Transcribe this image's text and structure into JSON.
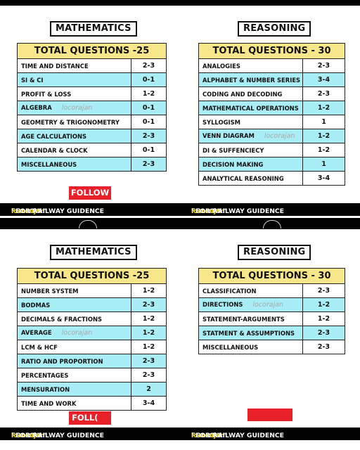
{
  "panels": [
    {
      "math": {
        "subject": "MATHEMATICS",
        "header": "TOTAL QUESTIONS -25",
        "rows": [
          {
            "topic": "TIME AND DISTANCE",
            "value": "2-3",
            "watermark": ""
          },
          {
            "topic": "SI & CI",
            "value": "0-1",
            "watermark": ""
          },
          {
            "topic": "PROFIT & LOSS",
            "value": "1-2",
            "watermark": ""
          },
          {
            "topic": "ALGEBRA",
            "value": "0-1",
            "watermark": "locorajan"
          },
          {
            "topic": "GEOMETRY & TRIGONOMETRY",
            "value": "0-1",
            "watermark": ""
          },
          {
            "topic": "AGE CALCULATIONS",
            "value": "2-3",
            "watermark": ""
          },
          {
            "topic": "CALENDAR & CLOCK",
            "value": "0-1",
            "watermark": ""
          },
          {
            "topic": "MISCELLANEOUS",
            "value": "2-3",
            "watermark": ""
          }
        ]
      },
      "reasoning": {
        "subject": "REASONING",
        "header": "TOTAL QUESTIONS - 30",
        "rows": [
          {
            "topic": "ANALOGIES",
            "value": "2-3",
            "watermark": ""
          },
          {
            "topic": "ALPHABET & NUMBER SERIES",
            "value": "3-4",
            "watermark": ""
          },
          {
            "topic": "CODING AND DECODING",
            "value": "2-3",
            "watermark": ""
          },
          {
            "topic": "MATHEMATICAL OPERATIONS",
            "value": "1-2",
            "watermark": ""
          },
          {
            "topic": "SYLLOGISM",
            "value": "1",
            "watermark": ""
          },
          {
            "topic": "VENN DIAGRAM",
            "value": "1-2",
            "watermark": "locorajan"
          },
          {
            "topic": "DI & SUFFENCIECY",
            "value": "1-2",
            "watermark": ""
          },
          {
            "topic": "DECISION MAKING",
            "value": "1",
            "watermark": ""
          },
          {
            "topic": "ANALYTICAL REASONING",
            "value": "3-4",
            "watermark": ""
          }
        ]
      },
      "follow_button": "FOLLOW",
      "banner": {
        "left": {
          "pre": "FOLLOW '",
          "handle": "locorajan",
          "post": "' FOR RAILWAY GUIDENCE"
        },
        "right": {
          "pre": "FOLLOW '",
          "handle": "locorajan",
          "post": "' FOR RAILWAY GUIDENCE"
        }
      }
    },
    {
      "math": {
        "subject": "MATHEMATICS",
        "header": "TOTAL QUESTIONS -25",
        "rows": [
          {
            "topic": "NUMBER SYSTEM",
            "value": "1-2",
            "watermark": ""
          },
          {
            "topic": "BODMAS",
            "value": "2-3",
            "watermark": ""
          },
          {
            "topic": "DECIMALS & FRACTIONS",
            "value": "1-2",
            "watermark": ""
          },
          {
            "topic": "AVERAGE",
            "value": "1-2",
            "watermark": "locorajan"
          },
          {
            "topic": "LCM & HCF",
            "value": "1-2",
            "watermark": ""
          },
          {
            "topic": "RATIO AND PROPORTION",
            "value": "2-3",
            "watermark": ""
          },
          {
            "topic": "PERCENTAGES",
            "value": "2-3",
            "watermark": ""
          },
          {
            "topic": "MENSURATION",
            "value": "2",
            "watermark": ""
          },
          {
            "topic": "TIME AND WORK",
            "value": "3-4",
            "watermark": ""
          }
        ]
      },
      "reasoning": {
        "subject": "REASONING",
        "header": "TOTAL QUESTIONS - 30",
        "rows": [
          {
            "topic": "CLASSIFICATION",
            "value": "2-3",
            "watermark": ""
          },
          {
            "topic": "DIRECTIONS",
            "value": "1-2",
            "watermark": "locorajan"
          },
          {
            "topic": "STATEMENT-ARGUMENTS",
            "value": "1-2",
            "watermark": ""
          },
          {
            "topic": "STATMENT & ASSUMPTIONS",
            "value": "2-3",
            "watermark": ""
          },
          {
            "topic": "MISCELLANEOUS",
            "value": "2-3",
            "watermark": ""
          }
        ]
      },
      "follow_button": "FOLL(",
      "banner": {
        "left": {
          "pre": "FOLLOW '",
          "handle": "locorajan",
          "post": "' FOR RAILWAY GUIDENCE"
        },
        "right": {
          "pre": "FOLLOW '",
          "handle": "locorajan",
          "post": "' FOR RAILWAY GUIDENCE"
        }
      }
    }
  ],
  "colors": {
    "header_yellow": "#f7e78a",
    "row_cyan": "#a9eef7",
    "follow_red": "#e8202a",
    "banner_black": "#000000",
    "handle_yellow": "#f2d21a"
  }
}
